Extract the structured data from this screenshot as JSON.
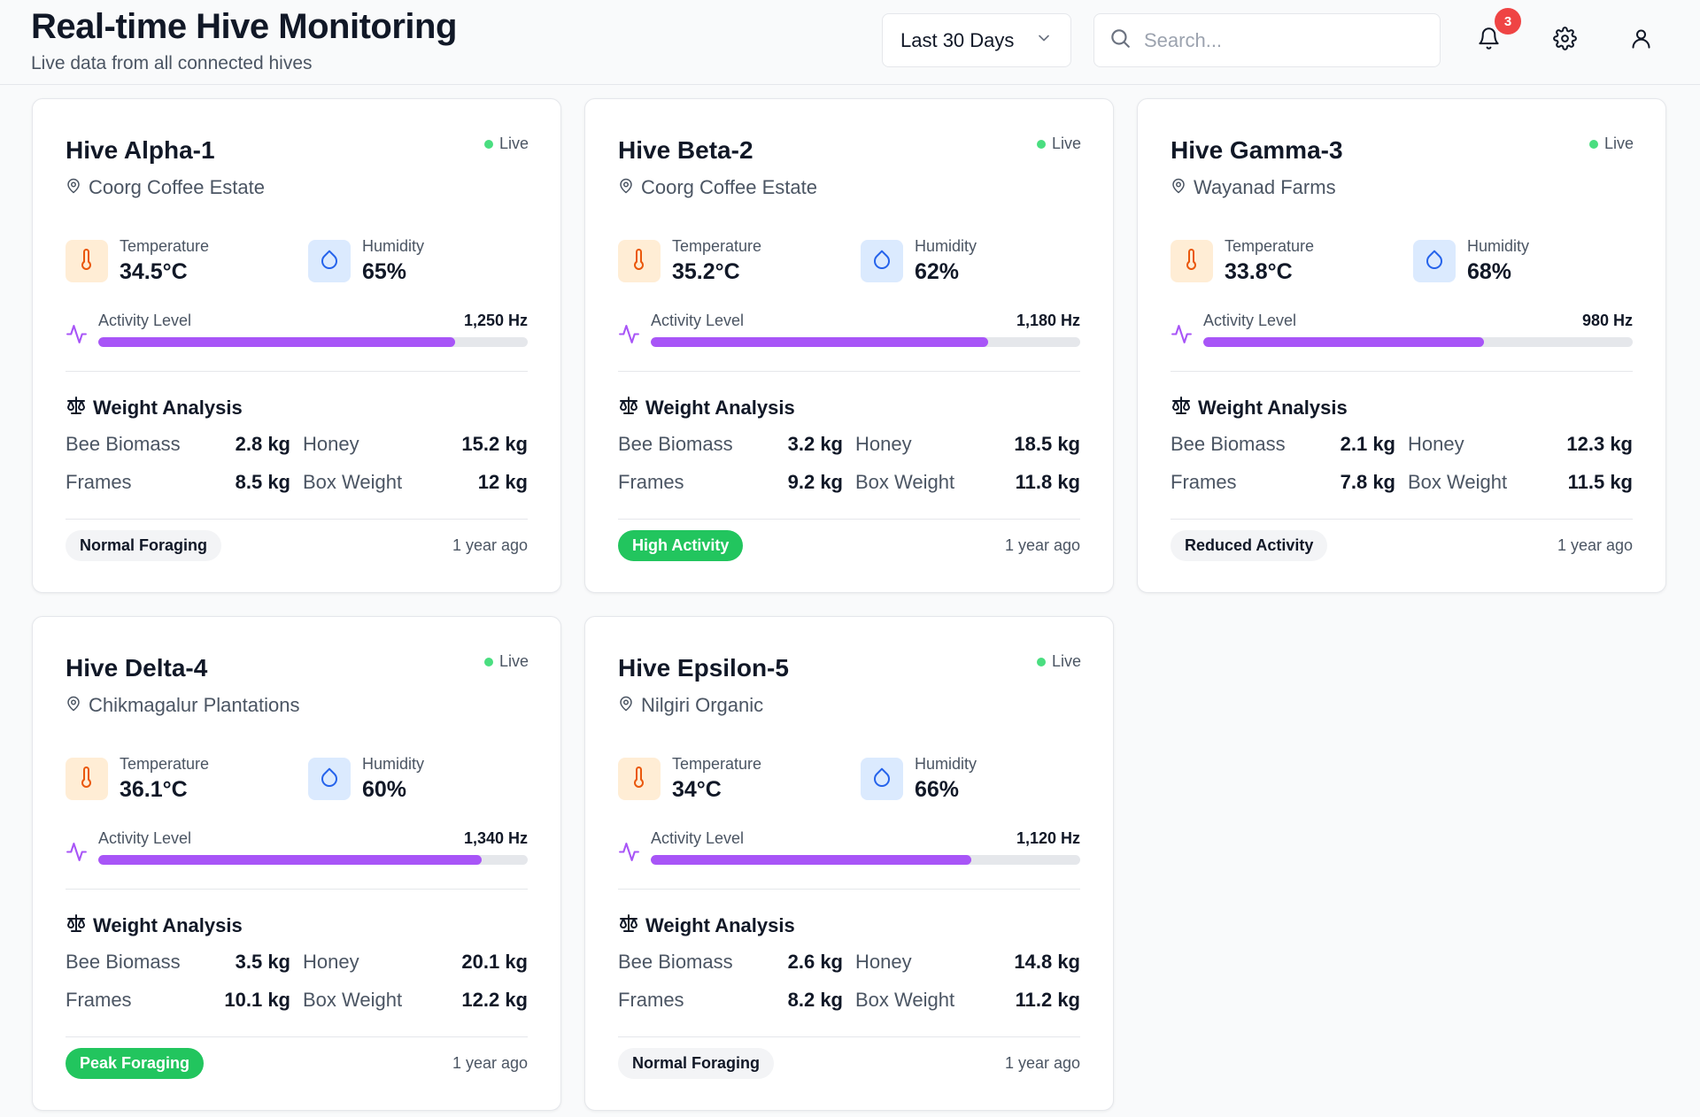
{
  "header": {
    "title": "Real-time Hive Monitoring",
    "subtitle": "Live data from all connected hives",
    "range_label": "Last 30 Days",
    "search_placeholder": "Search...",
    "notification_count": "3"
  },
  "labels": {
    "live": "Live",
    "temperature": "Temperature",
    "humidity": "Humidity",
    "activity": "Activity Level",
    "weight_title": "Weight Analysis",
    "bee_biomass": "Bee Biomass",
    "honey": "Honey",
    "frames": "Frames",
    "box_weight": "Box Weight"
  },
  "colors": {
    "accent_purple": "#a855f7",
    "live_green": "#4ade80",
    "badge_green": "#22c55e",
    "alert_red": "#ef4444",
    "temp_orange": "#ea580c",
    "hum_blue": "#2563eb"
  },
  "hives": [
    {
      "name": "Hive Alpha-1",
      "location": "Coorg Coffee Estate",
      "temperature": "34.5°C",
      "humidity": "65%",
      "activity": "1,250 Hz",
      "activity_fraction": 0.83,
      "bee_biomass": "2.8 kg",
      "honey": "15.2 kg",
      "frames": "8.5 kg",
      "box_weight": "12 kg",
      "status": "Normal Foraging",
      "status_kind": "normal",
      "updated": "1 year ago"
    },
    {
      "name": "Hive Beta-2",
      "location": "Coorg Coffee Estate",
      "temperature": "35.2°C",
      "humidity": "62%",
      "activity": "1,180 Hz",
      "activity_fraction": 0.786,
      "bee_biomass": "3.2 kg",
      "honey": "18.5 kg",
      "frames": "9.2 kg",
      "box_weight": "11.8 kg",
      "status": "High Activity",
      "status_kind": "high",
      "updated": "1 year ago"
    },
    {
      "name": "Hive Gamma-3",
      "location": "Wayanad Farms",
      "temperature": "33.8°C",
      "humidity": "68%",
      "activity": "980 Hz",
      "activity_fraction": 0.653,
      "bee_biomass": "2.1 kg",
      "honey": "12.3 kg",
      "frames": "7.8 kg",
      "box_weight": "11.5 kg",
      "status": "Reduced Activity",
      "status_kind": "reduced",
      "updated": "1 year ago"
    },
    {
      "name": "Hive Delta-4",
      "location": "Chikmagalur Plantations",
      "temperature": "36.1°C",
      "humidity": "60%",
      "activity": "1,340 Hz",
      "activity_fraction": 0.893,
      "bee_biomass": "3.5 kg",
      "honey": "20.1 kg",
      "frames": "10.1 kg",
      "box_weight": "12.2 kg",
      "status": "Peak Foraging",
      "status_kind": "peak",
      "updated": "1 year ago"
    },
    {
      "name": "Hive Epsilon-5",
      "location": "Nilgiri Organic",
      "temperature": "34°C",
      "humidity": "66%",
      "activity": "1,120 Hz",
      "activity_fraction": 0.746,
      "bee_biomass": "2.6 kg",
      "honey": "14.8 kg",
      "frames": "8.2 kg",
      "box_weight": "11.2 kg",
      "status": "Normal Foraging",
      "status_kind": "normal",
      "updated": "1 year ago"
    }
  ]
}
